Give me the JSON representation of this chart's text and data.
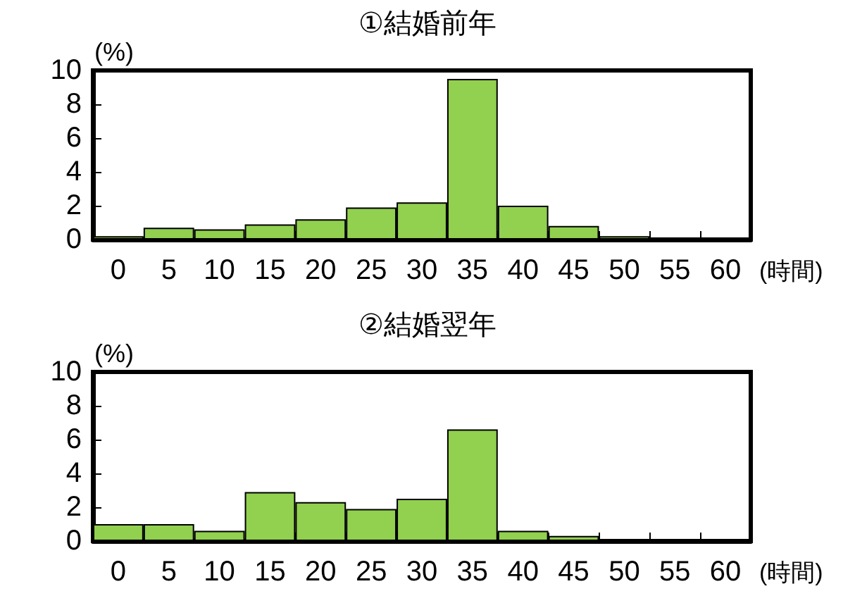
{
  "chart_data": [
    {
      "type": "bar",
      "title": "①結婚前年",
      "xlabel": "(時間)",
      "ylabel": "(%)",
      "categories": [
        "0",
        "5",
        "10",
        "15",
        "20",
        "25",
        "30",
        "35",
        "40",
        "45",
        "50",
        "55",
        "60"
      ],
      "series": [
        {
          "color": "#92d050",
          "values": [
            0.2,
            0.7,
            0.6,
            0.9,
            1.2,
            1.9,
            2.2,
            9.5,
            2.0,
            0.8,
            0.2,
            0.1,
            0.1
          ]
        }
      ],
      "ylim": [
        0,
        10
      ],
      "yticks": [
        0,
        2,
        4,
        6,
        8,
        10
      ],
      "grid": false
    },
    {
      "type": "bar",
      "title": "②結婚翌年",
      "xlabel": "(時間)",
      "ylabel": "(%)",
      "categories": [
        "0",
        "5",
        "10",
        "15",
        "20",
        "25",
        "30",
        "35",
        "40",
        "45",
        "50",
        "55",
        "60"
      ],
      "series": [
        {
          "color": "#92d050",
          "values": [
            1.0,
            1.0,
            0.6,
            2.9,
            2.3,
            1.9,
            2.5,
            6.6,
            0.6,
            0.3,
            0.1,
            0.1,
            0.1
          ]
        }
      ],
      "ylim": [
        0,
        10
      ],
      "yticks": [
        0,
        2,
        4,
        6,
        8,
        10
      ],
      "grid": false
    }
  ]
}
